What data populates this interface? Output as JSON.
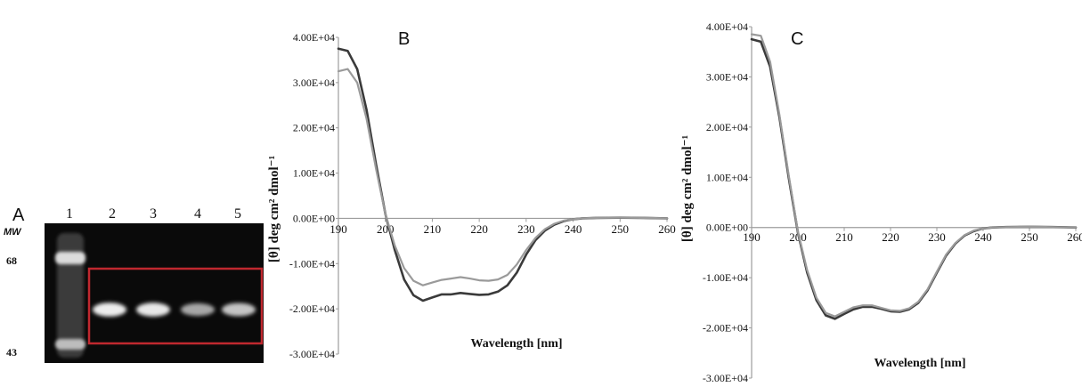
{
  "gel": {
    "panel_label": "A",
    "lanes": [
      "1",
      "2",
      "3",
      "4",
      "5"
    ],
    "mw_label": "MW",
    "mw_markers": [
      "68",
      "43"
    ],
    "band_intensity": [
      1.0,
      0.9,
      0.88,
      0.55,
      0.7
    ],
    "box_color": "#c0282f"
  },
  "chart_data": [
    {
      "type": "line",
      "panel_label": "B",
      "xlabel": "Wavelength [nm]",
      "ylabel": "[θ] deg cm² dmol⁻¹",
      "xlim": [
        190,
        260
      ],
      "ylim": [
        -30000,
        40000
      ],
      "xticks": [
        "190",
        "200",
        "210",
        "220",
        "230",
        "240",
        "250",
        "260"
      ],
      "yticks": [
        "4.00E+04",
        "3.00E+04",
        "2.00E+04",
        "1.00E+04",
        "0.00E+00",
        "-1.00E+04",
        "-2.00E+04",
        "-3.00E+04"
      ],
      "grid": false,
      "series": [
        {
          "color": "#3a3a3a",
          "x": [
            190,
            192,
            194,
            196,
            198,
            200,
            202,
            204,
            206,
            208,
            210,
            212,
            214,
            216,
            218,
            220,
            222,
            224,
            226,
            228,
            230,
            232,
            234,
            236,
            238,
            240,
            242,
            245,
            250,
            255,
            260
          ],
          "y": [
            37500,
            37000,
            33000,
            24000,
            12000,
            1000,
            -7000,
            -13500,
            -17000,
            -18200,
            -17500,
            -16800,
            -16800,
            -16500,
            -16700,
            -16900,
            -16800,
            -16200,
            -14800,
            -12000,
            -8000,
            -4800,
            -2700,
            -1400,
            -600,
            -200,
            0,
            100,
            150,
            100,
            0
          ]
        },
        {
          "color": "#9a9a9a",
          "x": [
            190,
            192,
            194,
            196,
            198,
            200,
            202,
            204,
            206,
            208,
            210,
            212,
            214,
            216,
            218,
            220,
            222,
            224,
            226,
            228,
            230,
            232,
            234,
            236,
            238,
            240,
            242,
            245,
            250,
            255,
            260
          ],
          "y": [
            32500,
            33000,
            30000,
            22000,
            11000,
            1000,
            -6000,
            -11000,
            -13800,
            -14800,
            -14200,
            -13600,
            -13300,
            -13000,
            -13300,
            -13700,
            -13800,
            -13500,
            -12500,
            -10200,
            -7000,
            -4300,
            -2400,
            -1200,
            -500,
            -200,
            0,
            100,
            150,
            100,
            0
          ]
        }
      ]
    },
    {
      "type": "line",
      "panel_label": "C",
      "xlabel": "Wavelength [nm]",
      "ylabel": "[θ] deg cm² dmol⁻¹",
      "xlim": [
        190,
        260
      ],
      "ylim": [
        -30000,
        40000
      ],
      "xticks": [
        "190",
        "200",
        "210",
        "220",
        "230",
        "240",
        "250",
        "260"
      ],
      "yticks": [
        "4.00E+04",
        "3.00E+04",
        "2.00E+04",
        "1.00E+04",
        "0.00E+00",
        "-1.00E+04",
        "-2.00E+04",
        "-3.00E+04"
      ],
      "grid": false,
      "series": [
        {
          "color": "#3a3a3a",
          "x": [
            190,
            192,
            194,
            196,
            198,
            200,
            202,
            204,
            206,
            208,
            210,
            212,
            214,
            216,
            218,
            220,
            222,
            224,
            226,
            228,
            230,
            232,
            234,
            236,
            238,
            240,
            242,
            245,
            250,
            255,
            260
          ],
          "y": [
            37500,
            37000,
            32000,
            22000,
            10000,
            -1000,
            -9000,
            -14500,
            -17500,
            -18200,
            -17200,
            -16300,
            -15800,
            -15800,
            -16200,
            -16700,
            -16800,
            -16300,
            -15000,
            -12500,
            -9000,
            -5600,
            -3200,
            -1600,
            -700,
            -200,
            0,
            100,
            150,
            100,
            0
          ]
        },
        {
          "color": "#9a9a9a",
          "x": [
            190,
            192,
            194,
            196,
            198,
            200,
            202,
            204,
            206,
            208,
            210,
            212,
            214,
            216,
            218,
            220,
            222,
            224,
            226,
            228,
            230,
            232,
            234,
            236,
            238,
            240,
            242,
            245,
            250,
            255,
            260
          ],
          "y": [
            38500,
            38200,
            33000,
            22500,
            10500,
            -800,
            -8500,
            -14000,
            -17000,
            -17700,
            -16800,
            -15900,
            -15500,
            -15500,
            -16000,
            -16500,
            -16600,
            -16100,
            -14800,
            -12300,
            -8800,
            -5400,
            -3100,
            -1500,
            -600,
            -200,
            0,
            100,
            150,
            100,
            0
          ]
        }
      ]
    }
  ]
}
